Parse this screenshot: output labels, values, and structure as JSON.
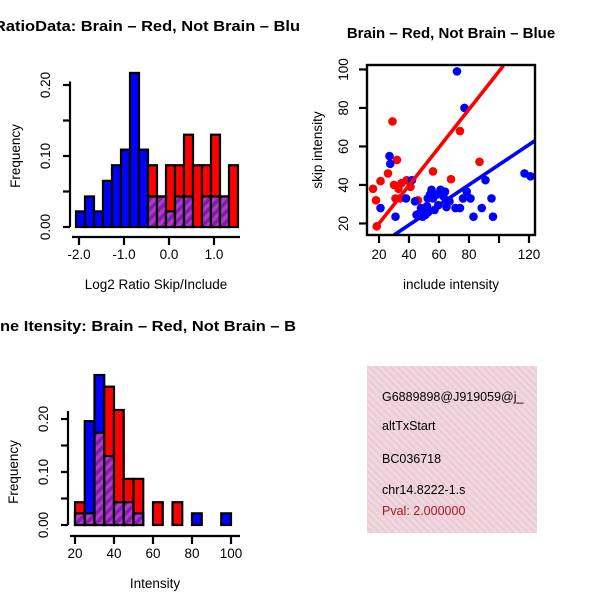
{
  "colors": {
    "red": "#FF0000",
    "blue": "#0000FF",
    "overlap_base": "#B238CC",
    "overlap_stripe": "#7E1FA6",
    "infobox_bg": "#F6D2EA",
    "infobox_stripe": "#E2D2C5",
    "pval_red": "#A21C1C",
    "axis": "#000000"
  },
  "chart_data": [
    {
      "id": "log2_ratio_histogram",
      "type": "bar",
      "title": "RatioData: Brain – Red, Not Brain – Blu",
      "xlabel": "Log2 Ratio Skip/Include",
      "ylabel": "Frequency",
      "bin_start": -2.2,
      "bin_width": 0.2,
      "xticks": [
        -2,
        -1,
        0,
        1
      ],
      "xtick_labels": [
        "-2.0",
        "-1.0",
        "0.0",
        "1.0"
      ],
      "yticks": [
        0,
        0.05,
        0.1,
        0.15,
        0.2
      ],
      "ytick_labels": [
        "0.00",
        "",
        "0.10",
        "",
        "0.20"
      ],
      "ylim": [
        0,
        0.22
      ],
      "grid": false,
      "series": [
        {
          "name": "brain_red",
          "color": "red",
          "values": [
            0,
            0,
            0,
            0,
            0,
            0,
            0,
            0,
            0.087,
            0.043,
            0.087,
            0.087,
            0.13,
            0.087,
            0.087,
            0.13,
            0.043,
            0.087
          ]
        },
        {
          "name": "not_brain_blue",
          "color": "blue",
          "values": [
            0.022,
            0.043,
            0.022,
            0.065,
            0.087,
            0.109,
            0.217,
            0.109,
            0.043,
            0.043,
            0.022,
            0.043,
            0.043,
            0,
            0.043,
            0.043,
            0.043,
            0
          ]
        }
      ]
    },
    {
      "id": "intensity_scatter",
      "type": "scatter",
      "title": "Brain – Red, Not Brain – Blue",
      "xlabel": "include intensity",
      "ylabel": "skip intensity",
      "xticks": [
        20,
        40,
        60,
        80,
        100,
        120
      ],
      "xtick_labels": [
        "20",
        "40",
        "60",
        "80",
        "",
        "120"
      ],
      "yticks": [
        20,
        40,
        60,
        80,
        100
      ],
      "ytick_labels": [
        "20",
        "40",
        "60",
        "80",
        "100"
      ],
      "xlim": [
        12,
        124
      ],
      "ylim": [
        14,
        103
      ],
      "grid": false,
      "series": [
        {
          "name": "brain_red",
          "color": "red",
          "points": [
            [
              16,
              38
            ],
            [
              18,
              32
            ],
            [
              18.5,
              18.5
            ],
            [
              21,
              42
            ],
            [
              26,
              46
            ],
            [
              29,
              73
            ],
            [
              30,
              40
            ],
            [
              31,
              33
            ],
            [
              32,
              53
            ],
            [
              33,
              38
            ],
            [
              34,
              33
            ],
            [
              35,
              41
            ],
            [
              38.5,
              42.5
            ],
            [
              41,
              39
            ],
            [
              46,
              32
            ],
            [
              56,
              47
            ],
            [
              68,
              43
            ],
            [
              74,
              68
            ],
            [
              87,
              52
            ]
          ]
        },
        {
          "name": "not_brain_blue",
          "color": "blue",
          "points": [
            [
              21,
              28
            ],
            [
              27,
              55
            ],
            [
              27.5,
              51
            ],
            [
              31,
              23.5
            ],
            [
              38,
              33
            ],
            [
              42,
              42.5
            ],
            [
              44,
              31.5
            ],
            [
              45,
              24.5
            ],
            [
              46.5,
              25
            ],
            [
              48,
              28
            ],
            [
              49,
              23.5
            ],
            [
              50,
              26
            ],
            [
              51,
              24.5
            ],
            [
              52,
              29
            ],
            [
              52.5,
              33
            ],
            [
              53,
              26
            ],
            [
              54,
              35
            ],
            [
              55,
              37.5
            ],
            [
              56,
              33
            ],
            [
              57,
              27
            ],
            [
              58.5,
              35
            ],
            [
              59.5,
              29.5
            ],
            [
              61,
              37.5
            ],
            [
              63,
              34
            ],
            [
              64,
              36.5
            ],
            [
              65,
              28.5
            ],
            [
              67,
              31.5
            ],
            [
              71,
              28
            ],
            [
              72,
              99
            ],
            [
              74,
              28
            ],
            [
              76,
              33
            ],
            [
              77,
              80
            ],
            [
              78.5,
              36.5
            ],
            [
              81,
              33
            ],
            [
              83,
              23.5
            ],
            [
              88.5,
              28
            ],
            [
              91,
              42.5
            ],
            [
              95,
              33
            ],
            [
              96,
              23.5
            ],
            [
              117,
              46
            ],
            [
              121,
              44.5
            ]
          ]
        }
      ],
      "fit_lines": [
        {
          "name": "red_fit",
          "color": "red",
          "x1": 17,
          "y1": 17,
          "x2": 103,
          "y2": 102
        },
        {
          "name": "blue_fit",
          "color": "blue",
          "x1": 30,
          "y1": 14,
          "x2": 124,
          "y2": 63
        }
      ]
    },
    {
      "id": "gene_intensity_histogram",
      "type": "bar",
      "title": "ne Itensity: Brain – Red, Not Brain – B",
      "xlabel": "Intensity",
      "ylabel": "Frequency",
      "bin_start": 20,
      "bin_width": 5,
      "xticks": [
        20,
        40,
        60,
        80,
        100
      ],
      "xtick_labels": [
        "20",
        "40",
        "60",
        "80",
        "100"
      ],
      "yticks": [
        0,
        0.05,
        0.1,
        0.15,
        0.2
      ],
      "ytick_labels": [
        "0.00",
        "",
        "0.10",
        "",
        "0.20"
      ],
      "ylim": [
        0,
        0.29
      ],
      "grid": false,
      "series": [
        {
          "name": "brain_red",
          "color": "red",
          "values": [
            0.043,
            0.022,
            0.174,
            0.261,
            0.217,
            0.087,
            0.087,
            0,
            0.043,
            0,
            0.043,
            0,
            0,
            0,
            0,
            0
          ]
        },
        {
          "name": "not_brain_blue",
          "color": "blue",
          "values": [
            0.022,
            0.196,
            0.283,
            0.13,
            0.043,
            0.043,
            0.022,
            0,
            0,
            0,
            0,
            0,
            0.022,
            0,
            0,
            0.022
          ]
        }
      ]
    }
  ],
  "info_box": {
    "lines": [
      "G6889898@J919059@j_",
      "altTxStart",
      "BC036718",
      "chr14.8222-1.s"
    ],
    "pval": "Pval: 2.000000"
  }
}
